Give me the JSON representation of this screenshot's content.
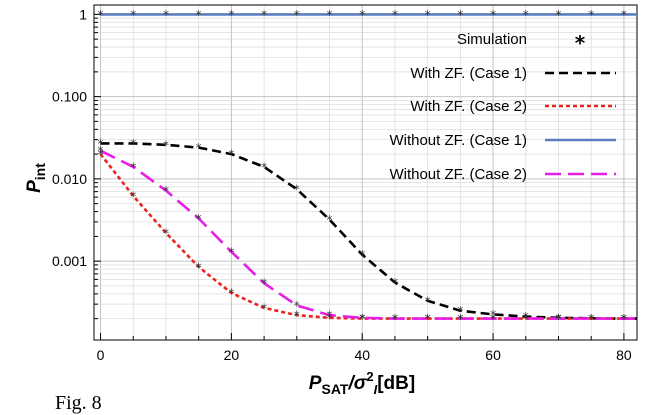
{
  "chart_data": {
    "type": "line",
    "xlabel_main": "P",
    "xlabel_sub": "SAT",
    "xlabel_slash": "/σ",
    "xlabel_sup": "2",
    "xlabel_sub2": "I",
    "xlabel_unit": "[dB]",
    "ylabel_main": "P",
    "ylabel_sub": "int",
    "x_ticks": [
      0,
      20,
      40,
      60,
      80
    ],
    "y_ticks": [
      {
        "value": 0.001,
        "label": "0.001"
      },
      {
        "value": 0.01,
        "label": "0.010"
      },
      {
        "value": 0.1,
        "label": "0.100"
      },
      {
        "value": 1,
        "label": "1"
      }
    ],
    "xlim": [
      -1,
      82
    ],
    "ylim": [
      0.00011,
      1.3
    ],
    "y_scale": "log",
    "grid": true,
    "legend_position": "top-right",
    "legend": [
      {
        "label": "Simulation",
        "marker": "*"
      },
      {
        "label": "With ZF. (Case 1)"
      },
      {
        "label": "With ZF. (Case 2)"
      },
      {
        "label": "Without ZF. (Case 1)"
      },
      {
        "label": "Without ZF. (Case 2)"
      }
    ],
    "series": [
      {
        "name": "With ZF. (Case 1)",
        "color": "#000000",
        "dash": "9,5",
        "x": [
          0,
          5,
          10,
          15,
          20,
          25,
          30,
          35,
          40,
          45,
          50,
          55,
          60,
          65,
          70,
          75,
          80,
          82
        ],
        "y": [
          0.027,
          0.027,
          0.026,
          0.024,
          0.02,
          0.014,
          0.0075,
          0.0032,
          0.0012,
          0.00055,
          0.00033,
          0.00025,
          0.000225,
          0.000212,
          0.000205,
          0.000202,
          0.0002,
          0.0002
        ]
      },
      {
        "name": "With ZF. (Case 2)",
        "color": "#e8251f",
        "dash": "4,3",
        "x": [
          0,
          5,
          10,
          15,
          20,
          25,
          30,
          35,
          40,
          45,
          50,
          55,
          60,
          65,
          70,
          75,
          80,
          82
        ],
        "y": [
          0.02,
          0.0062,
          0.0022,
          0.00085,
          0.00041,
          0.00027,
          0.00022,
          0.000205,
          0.0002,
          0.0002,
          0.0002,
          0.0002,
          0.0002,
          0.0002,
          0.0002,
          0.0002,
          0.0002,
          0.0002
        ]
      },
      {
        "name": "Without ZF. (Case 1)",
        "color": "#5a7fbf",
        "dash": "",
        "x": [
          0,
          82
        ],
        "y": [
          1,
          1
        ]
      },
      {
        "name": "Without ZF. (Case 2)",
        "color": "#e61ee6",
        "dash": "16,7",
        "x": [
          0,
          5,
          10,
          15,
          20,
          25,
          30,
          35,
          40,
          45,
          50,
          55,
          60,
          65,
          70,
          75,
          80,
          82
        ],
        "y": [
          0.022,
          0.014,
          0.0072,
          0.0033,
          0.0013,
          0.00054,
          0.00029,
          0.00022,
          0.000205,
          0.0002,
          0.0002,
          0.0002,
          0.0002,
          0.0002,
          0.0002,
          0.0002,
          0.0002,
          0.0002
        ]
      }
    ],
    "simulation_points": [
      {
        "x": [
          0,
          5,
          10,
          15,
          20,
          25,
          30,
          35,
          40,
          45,
          50,
          55,
          60,
          65,
          70,
          75,
          80
        ],
        "y": [
          1,
          1,
          1,
          1,
          1,
          1,
          1,
          1,
          1,
          1,
          1,
          1,
          1,
          1,
          1,
          1,
          1
        ]
      },
      {
        "x": [
          0,
          5,
          10,
          15,
          20,
          25,
          30,
          35,
          40,
          45,
          50,
          55,
          60,
          65,
          70,
          75,
          80
        ],
        "y": [
          0.027,
          0.027,
          0.026,
          0.024,
          0.02,
          0.014,
          0.0075,
          0.0032,
          0.0012,
          0.00055,
          0.00033,
          0.00025,
          0.000225,
          0.000212,
          0.000205,
          0.000202,
          0.0002
        ]
      },
      {
        "x": [
          0,
          5,
          10,
          15,
          20,
          25,
          30,
          35,
          40,
          45,
          50,
          55,
          60,
          65,
          70,
          75,
          80
        ],
        "y": [
          0.02,
          0.0062,
          0.0022,
          0.00085,
          0.00041,
          0.00027,
          0.00022,
          0.000205,
          0.0002,
          0.0002,
          0.0002,
          0.0002,
          0.0002,
          0.0002,
          0.0002,
          0.0002,
          0.0002
        ]
      },
      {
        "x": [
          0,
          5,
          10,
          15,
          20,
          25,
          30,
          35,
          40,
          45,
          50,
          55,
          60,
          65,
          70,
          75,
          80
        ],
        "y": [
          0.022,
          0.014,
          0.0072,
          0.0033,
          0.0013,
          0.00054,
          0.00029,
          0.00022,
          0.000205,
          0.0002,
          0.0002,
          0.0002,
          0.0002,
          0.0002,
          0.0002,
          0.0002,
          0.0002
        ]
      }
    ]
  },
  "caption": "Fig. 8"
}
